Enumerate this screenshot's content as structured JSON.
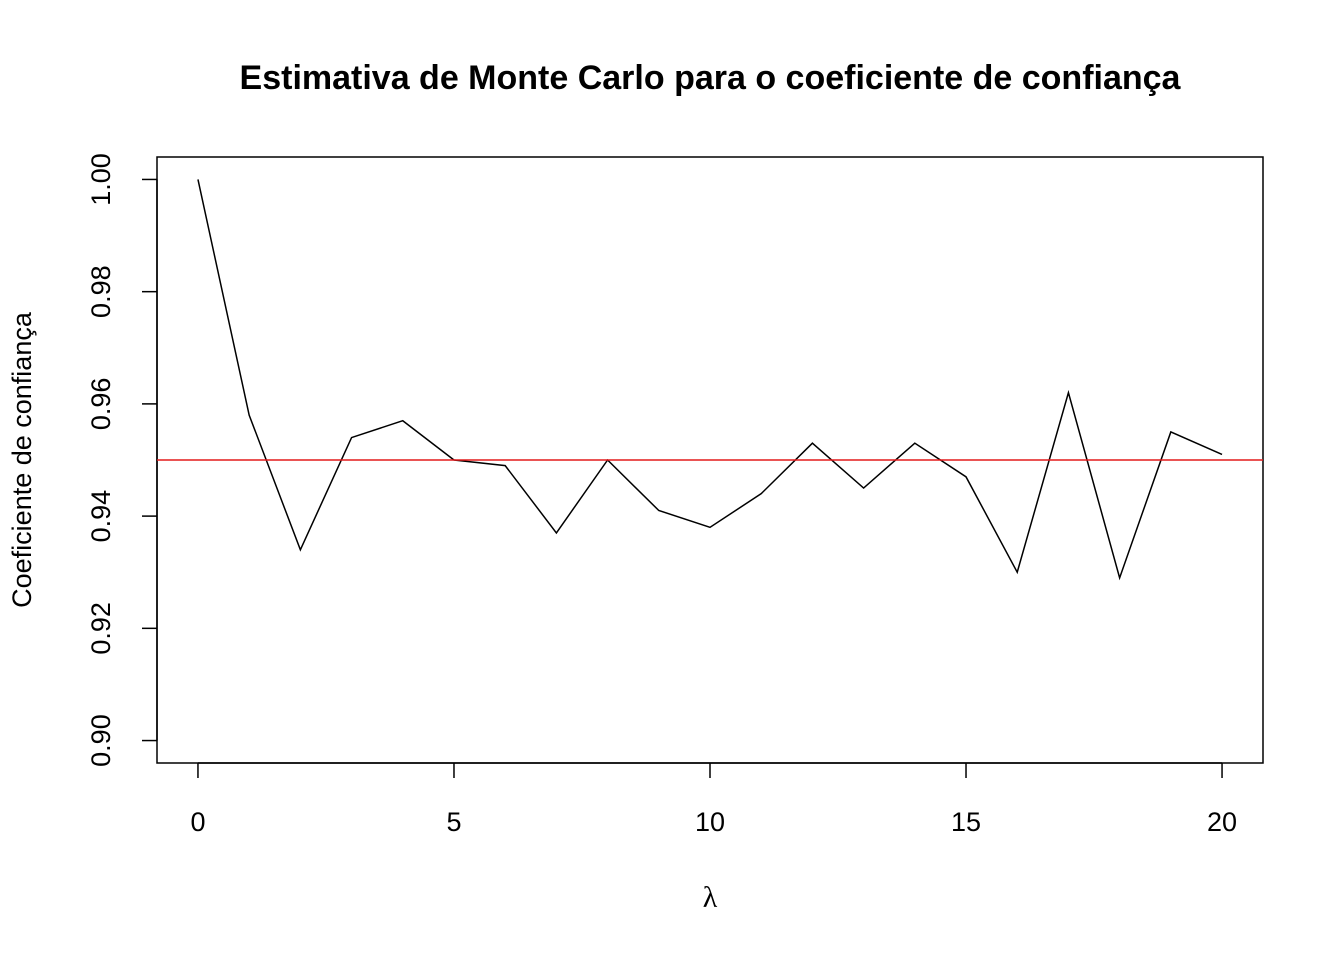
{
  "chart_data": {
    "type": "line",
    "title": "Estimativa de Monte Carlo para o coeficiente de confiança",
    "xlabel": "λ",
    "ylabel": "Coeficiente de confiança",
    "x": [
      0,
      1,
      2,
      3,
      4,
      5,
      6,
      7,
      8,
      9,
      10,
      11,
      12,
      13,
      14,
      15,
      16,
      17,
      18,
      19,
      20
    ],
    "values": [
      1.0,
      0.958,
      0.934,
      0.954,
      0.957,
      0.95,
      0.949,
      0.937,
      0.95,
      0.941,
      0.938,
      0.944,
      0.953,
      0.945,
      0.953,
      0.947,
      0.93,
      0.962,
      0.929,
      0.955,
      0.951
    ],
    "color": "#000000",
    "xlim": [
      -0.8,
      20.8
    ],
    "ylim": [
      0.896,
      1.004
    ],
    "xticks": [
      0,
      5,
      10,
      15,
      20
    ],
    "yticks": [
      {
        "value": 0.9,
        "label": "0.90"
      },
      0.92,
      0.94,
      0.96,
      0.98,
      {
        "value": 1,
        "label": "1.00"
      }
    ],
    "reference_line": {
      "value": 0.95,
      "color": "#e41a1c"
    },
    "grid": false
  }
}
